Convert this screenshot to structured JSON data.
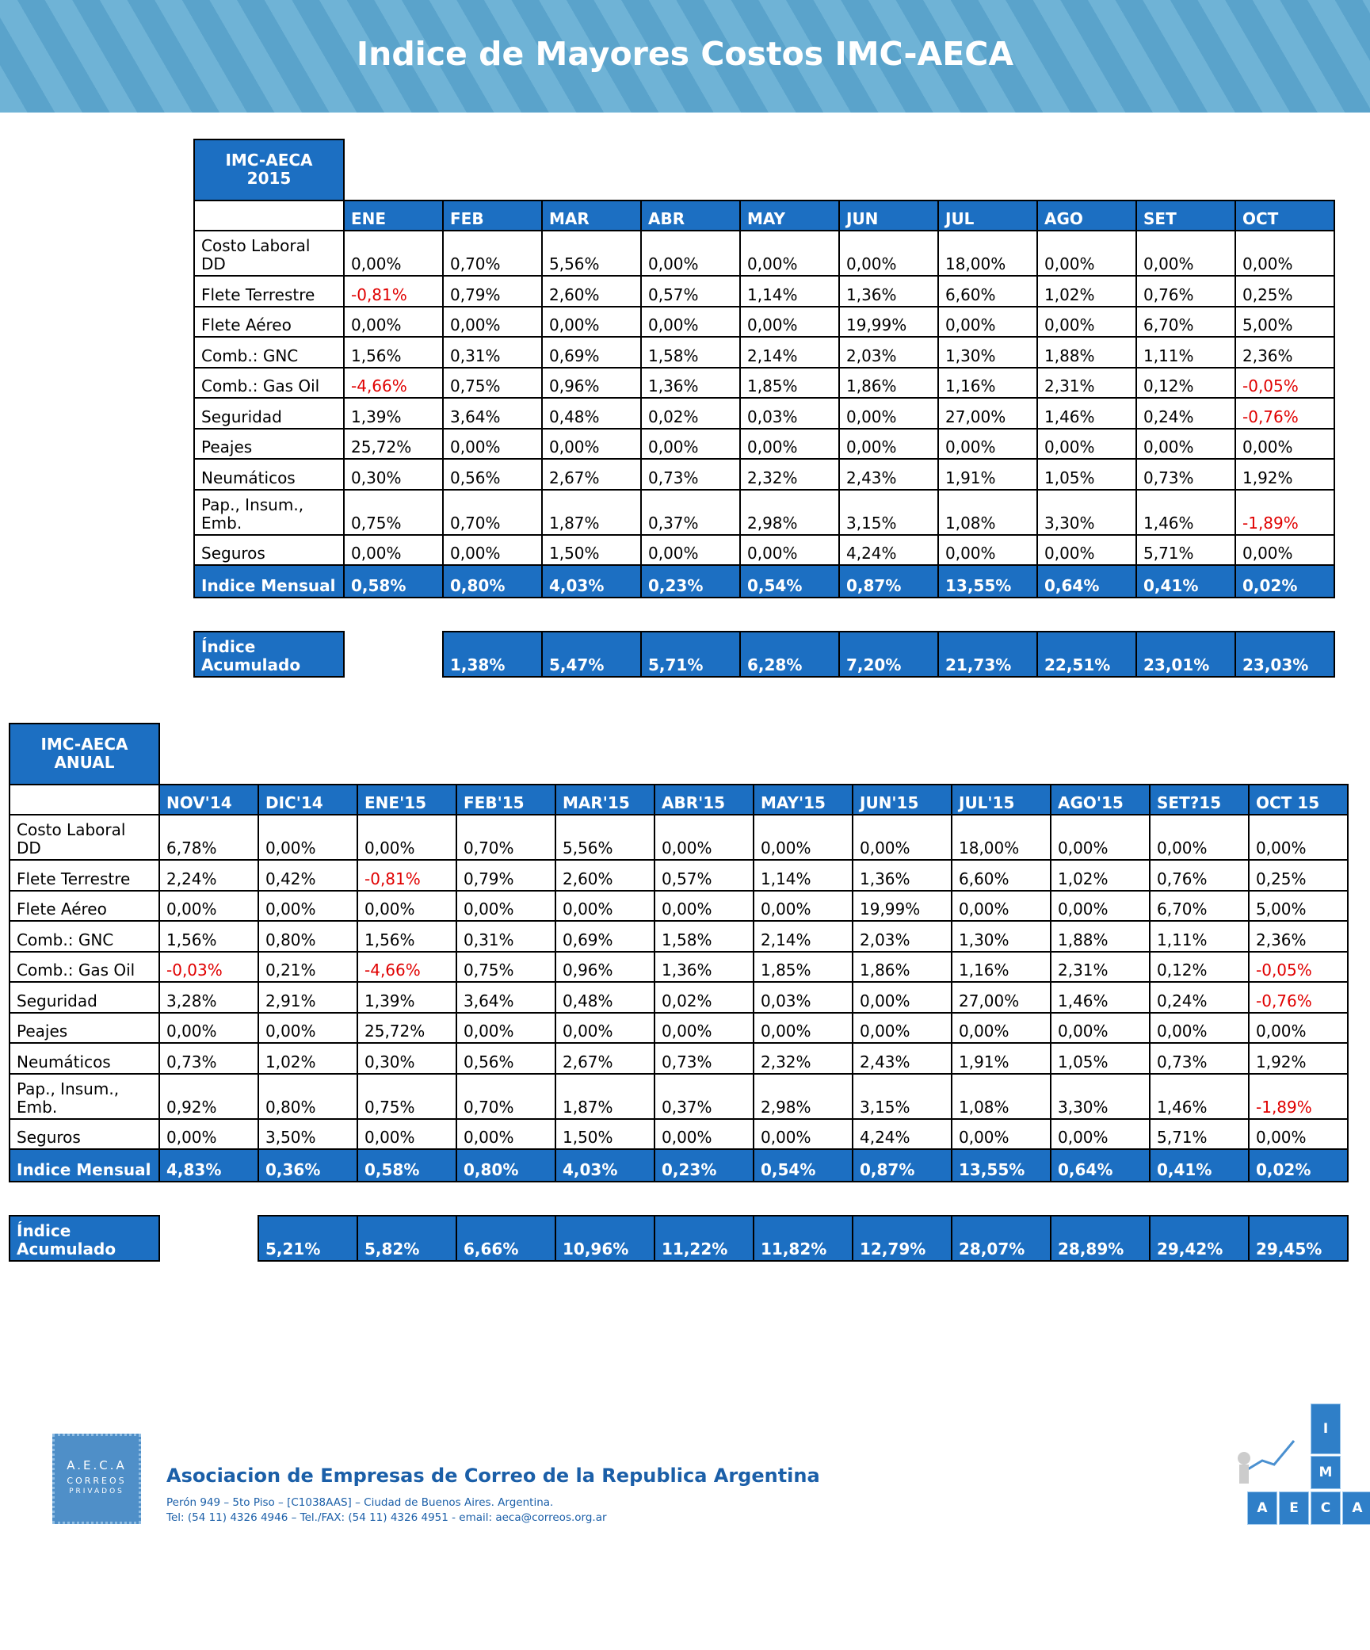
{
  "header": {
    "title": "Indice de Mayores Costos IMC-AECA"
  },
  "table1": {
    "corner": [
      "IMC-AECA",
      "2015"
    ],
    "columns": [
      "ENE",
      "FEB",
      "MAR",
      "ABR",
      "MAY",
      "JUN",
      "JUL",
      "AGO",
      "SET",
      "OCT"
    ],
    "rows": [
      {
        "label": "Costo Laboral DD",
        "values": [
          "0,00%",
          "0,70%",
          "5,56%",
          "0,00%",
          "0,00%",
          "0,00%",
          "18,00%",
          "0,00%",
          "0,00%",
          "0,00%"
        ]
      },
      {
        "label": "Flete Terrestre",
        "values": [
          "-0,81%",
          "0,79%",
          "2,60%",
          "0,57%",
          "1,14%",
          "1,36%",
          "6,60%",
          "1,02%",
          "0,76%",
          "0,25%"
        ]
      },
      {
        "label": "Flete Aéreo",
        "values": [
          "0,00%",
          "0,00%",
          "0,00%",
          "0,00%",
          "0,00%",
          "19,99%",
          "0,00%",
          "0,00%",
          "6,70%",
          "5,00%"
        ]
      },
      {
        "label": "Comb.: GNC",
        "values": [
          "1,56%",
          "0,31%",
          "0,69%",
          "1,58%",
          "2,14%",
          "2,03%",
          "1,30%",
          "1,88%",
          "1,11%",
          "2,36%"
        ]
      },
      {
        "label": "Comb.: Gas Oil",
        "values": [
          "-4,66%",
          "0,75%",
          "0,96%",
          "1,36%",
          "1,85%",
          "1,86%",
          "1,16%",
          "2,31%",
          "0,12%",
          "-0,05%"
        ]
      },
      {
        "label": "Seguridad",
        "values": [
          "1,39%",
          "3,64%",
          "0,48%",
          "0,02%",
          "0,03%",
          "0,00%",
          "27,00%",
          "1,46%",
          "0,24%",
          "-0,76%"
        ]
      },
      {
        "label": "Peajes",
        "values": [
          "25,72%",
          "0,00%",
          "0,00%",
          "0,00%",
          "0,00%",
          "0,00%",
          "0,00%",
          "0,00%",
          "0,00%",
          "0,00%"
        ]
      },
      {
        "label": "Neumáticos",
        "values": [
          "0,30%",
          "0,56%",
          "2,67%",
          "0,73%",
          "2,32%",
          "2,43%",
          "1,91%",
          "1,05%",
          "0,73%",
          "1,92%"
        ]
      },
      {
        "label": "Pap., Insum., Emb.",
        "values": [
          "0,75%",
          "0,70%",
          "1,87%",
          "0,37%",
          "2,98%",
          "3,15%",
          "1,08%",
          "3,30%",
          "1,46%",
          "-1,89%"
        ]
      },
      {
        "label": "Seguros",
        "values": [
          "0,00%",
          "0,00%",
          "1,50%",
          "0,00%",
          "0,00%",
          "4,24%",
          "0,00%",
          "0,00%",
          "5,71%",
          "0,00%"
        ]
      }
    ],
    "monthly": {
      "label": "Indice Mensual",
      "values": [
        "0,58%",
        "0,80%",
        "4,03%",
        "0,23%",
        "0,54%",
        "0,87%",
        "13,55%",
        "0,64%",
        "0,41%",
        "0,02%"
      ]
    },
    "cumulative": {
      "label": "Índice Acumulado",
      "values": [
        null,
        "1,38%",
        "5,47%",
        "5,71%",
        "6,28%",
        "7,20%",
        "21,73%",
        "22,51%",
        "23,01%",
        "23,03%"
      ]
    }
  },
  "table2": {
    "corner": [
      "IMC-AECA",
      "ANUAL"
    ],
    "columns": [
      "NOV'14",
      "DIC'14",
      "ENE'15",
      "FEB'15",
      "MAR'15",
      "ABR'15",
      "MAY'15",
      "JUN'15",
      "JUL'15",
      "AGO'15",
      "SET?15",
      "OCT 15"
    ],
    "rows": [
      {
        "label": "Costo Laboral DD",
        "values": [
          "6,78%",
          "0,00%",
          "0,00%",
          "0,70%",
          "5,56%",
          "0,00%",
          "0,00%",
          "0,00%",
          "18,00%",
          "0,00%",
          "0,00%",
          "0,00%"
        ]
      },
      {
        "label": "Flete Terrestre",
        "values": [
          "2,24%",
          "0,42%",
          "-0,81%",
          "0,79%",
          "2,60%",
          "0,57%",
          "1,14%",
          "1,36%",
          "6,60%",
          "1,02%",
          "0,76%",
          "0,25%"
        ]
      },
      {
        "label": "Flete Aéreo",
        "values": [
          "0,00%",
          "0,00%",
          "0,00%",
          "0,00%",
          "0,00%",
          "0,00%",
          "0,00%",
          "19,99%",
          "0,00%",
          "0,00%",
          "6,70%",
          "5,00%"
        ]
      },
      {
        "label": "Comb.: GNC",
        "values": [
          "1,56%",
          "0,80%",
          "1,56%",
          "0,31%",
          "0,69%",
          "1,58%",
          "2,14%",
          "2,03%",
          "1,30%",
          "1,88%",
          "1,11%",
          "2,36%"
        ]
      },
      {
        "label": "Comb.: Gas Oil",
        "values": [
          "-0,03%",
          "0,21%",
          "-4,66%",
          "0,75%",
          "0,96%",
          "1,36%",
          "1,85%",
          "1,86%",
          "1,16%",
          "2,31%",
          "0,12%",
          "-0,05%"
        ]
      },
      {
        "label": "Seguridad",
        "values": [
          "3,28%",
          "2,91%",
          "1,39%",
          "3,64%",
          "0,48%",
          "0,02%",
          "0,03%",
          "0,00%",
          "27,00%",
          "1,46%",
          "0,24%",
          "-0,76%"
        ]
      },
      {
        "label": "Peajes",
        "values": [
          "0,00%",
          "0,00%",
          "25,72%",
          "0,00%",
          "0,00%",
          "0,00%",
          "0,00%",
          "0,00%",
          "0,00%",
          "0,00%",
          "0,00%",
          "0,00%"
        ]
      },
      {
        "label": "Neumáticos",
        "values": [
          "0,73%",
          "1,02%",
          "0,30%",
          "0,56%",
          "2,67%",
          "0,73%",
          "2,32%",
          "2,43%",
          "1,91%",
          "1,05%",
          "0,73%",
          "1,92%"
        ]
      },
      {
        "label": "Pap., Insum., Emb.",
        "values": [
          "0,92%",
          "0,80%",
          "0,75%",
          "0,70%",
          "1,87%",
          "0,37%",
          "2,98%",
          "3,15%",
          "1,08%",
          "3,30%",
          "1,46%",
          "-1,89%"
        ]
      },
      {
        "label": "Seguros",
        "values": [
          "0,00%",
          "3,50%",
          "0,00%",
          "0,00%",
          "1,50%",
          "0,00%",
          "0,00%",
          "4,24%",
          "0,00%",
          "0,00%",
          "5,71%",
          "0,00%"
        ]
      }
    ],
    "monthly": {
      "label": "Indice Mensual",
      "values": [
        "4,83%",
        "0,36%",
        "0,58%",
        "0,80%",
        "4,03%",
        "0,23%",
        "0,54%",
        "0,87%",
        "13,55%",
        "0,64%",
        "0,41%",
        "0,02%"
      ]
    },
    "cumulative": {
      "label": "Índice Acumulado",
      "values": [
        null,
        "5,21%",
        "5,82%",
        "6,66%",
        "10,96%",
        "11,22%",
        "11,82%",
        "12,79%",
        "28,07%",
        "28,89%",
        "29,42%",
        "29,45%"
      ]
    }
  },
  "footer": {
    "organization": "Asociacion de Empresas de Correo de la Republica Argentina",
    "address": "Perón 949 – 5to Piso – [C1038AAS] – Ciudad de Buenos Aires. Argentina.",
    "contact": "Tel: (54 11) 4326 4946 – Tel./FAX: (54 11) 4326 4951 - email: aeca@correos.org.ar",
    "logo_left": [
      "A.E.C.A",
      "CORREOS",
      "PRIVADOS"
    ],
    "logo_right": [
      "I",
      "M",
      "A",
      "E",
      "C",
      "A"
    ]
  }
}
